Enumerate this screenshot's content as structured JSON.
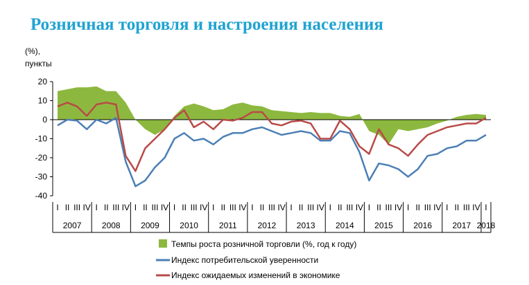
{
  "title": "Розничная торговля и настроения населения",
  "chart_data": {
    "type": "line",
    "ylabel_line1": "(%),",
    "ylabel_line2": "пункты",
    "ylim": [
      -40,
      20
    ],
    "yticks": [
      20,
      10,
      0,
      -10,
      -20,
      -30,
      -40
    ],
    "grid": false,
    "quarter_labels": [
      "I",
      "II",
      "III",
      "IV",
      "I",
      "II",
      "III",
      "IV",
      "I",
      "II",
      "III",
      "IV",
      "I",
      "II",
      "III",
      "IV",
      "I",
      "II",
      "III",
      "IV",
      "I",
      "II",
      "III",
      "IV",
      "I",
      "II",
      "III",
      "IV",
      "I",
      "II",
      "III",
      "IV",
      "I",
      "II",
      "III",
      "IV",
      "I",
      "II",
      "III",
      "IV",
      "I",
      "II",
      "III",
      "IV",
      "I"
    ],
    "years": [
      "2007",
      "2008",
      "2009",
      "2010",
      "2011",
      "2012",
      "2013",
      "2014",
      "2015",
      "2016",
      "2017",
      "2018"
    ],
    "x": [
      "2007 I",
      "2007 II",
      "2007 III",
      "2007 IV",
      "2008 I",
      "2008 II",
      "2008 III",
      "2008 IV",
      "2009 I",
      "2009 II",
      "2009 III",
      "2009 IV",
      "2010 I",
      "2010 II",
      "2010 III",
      "2010 IV",
      "2011 I",
      "2011 II",
      "2011 III",
      "2011 IV",
      "2012 I",
      "2012 II",
      "2012 III",
      "2012 IV",
      "2013 I",
      "2013 II",
      "2013 III",
      "2013 IV",
      "2014 I",
      "2014 II",
      "2014 III",
      "2014 IV",
      "2015 I",
      "2015 II",
      "2015 III",
      "2015 IV",
      "2016 I",
      "2016 II",
      "2016 III",
      "2016 IV",
      "2017 I",
      "2017 II",
      "2017 III",
      "2017 IV",
      "2018 I"
    ],
    "series": [
      {
        "name": "Темпы роста розничной торговли (%, год к году)",
        "type": "area",
        "color": "#8db83f",
        "values": [
          15,
          16,
          17,
          17,
          17.5,
          15,
          15,
          9,
          0,
          -5,
          -8,
          -5,
          2,
          7,
          8.5,
          7,
          5,
          5.5,
          8,
          9,
          7.5,
          7,
          5,
          4.5,
          4,
          3.5,
          4,
          3.5,
          3.5,
          2,
          1.5,
          3,
          -6,
          -8,
          -13,
          -5,
          -6,
          -5,
          -4,
          -2,
          -0.5,
          1.5,
          2.5,
          3,
          2.5
        ]
      },
      {
        "name": "Индекс потребительской уверенности",
        "type": "line",
        "color": "#4b7fb5",
        "values": [
          -3,
          0,
          -0.5,
          -5,
          0,
          -2,
          1,
          -22,
          -35,
          -32,
          -25,
          -20,
          -10,
          -7,
          -11,
          -10,
          -13,
          -9,
          -7,
          -7,
          -5,
          -4,
          -6,
          -8,
          -7,
          -6,
          -7,
          -11,
          -11,
          -6,
          -7,
          -17,
          -32,
          -23,
          -24,
          -26,
          -30,
          -26,
          -19,
          -18,
          -15,
          -14,
          -11,
          -11,
          -8
        ]
      },
      {
        "name": "Индекс ожидаемых изменений в экономике",
        "type": "line",
        "color": "#b84a47",
        "values": [
          7,
          9,
          7,
          2,
          8,
          9,
          8,
          -19,
          -27,
          -15,
          -10,
          -5,
          1,
          5,
          -4,
          -1,
          -5,
          0,
          -0.5,
          1,
          4,
          4,
          -2,
          -3,
          -1,
          -0.5,
          -2,
          -10,
          -10,
          -0.5,
          -5,
          -14,
          -18,
          -5,
          -13,
          -15,
          -19,
          -13,
          -8,
          -6,
          -4,
          -3,
          -2,
          -2,
          1
        ]
      }
    ]
  }
}
